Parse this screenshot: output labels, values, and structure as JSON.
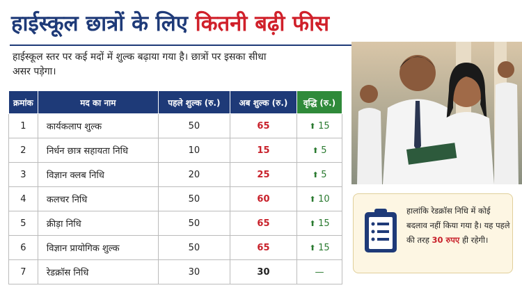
{
  "header": {
    "title_part1": "हाईस्कूल छात्रों के लिए",
    "title_part2": "कितनी बढ़ी फीस",
    "subtitle": "हाईस्कूल स्तर पर कई मदों में शुल्क बढ़ाया गया है। छात्रों पर इसका सीधा असर पड़ेगा।"
  },
  "table": {
    "columns": [
      "क्रमांक",
      "मद का नाम",
      "पहले शुल्क (रु.)",
      "अब शुल्क (रु.)",
      "वृद्धि (रु.)"
    ],
    "rows": [
      [
        1,
        "कार्यकलाप शुल्क",
        50,
        65,
        15
      ],
      [
        2,
        "निर्धन छात्र सहायता निधि",
        10,
        15,
        5
      ],
      [
        3,
        "विज्ञान क्लब निधि",
        20,
        25,
        5
      ],
      [
        4,
        "कलचर निधि",
        50,
        60,
        10
      ],
      [
        5,
        "क्रीड़ा निधि",
        50,
        65,
        15
      ],
      [
        6,
        "विज्ञान प्रायोगिक शुल्क",
        50,
        65,
        15
      ],
      [
        7,
        "रेडक्रॉस निधि",
        30,
        30,
        "—"
      ]
    ]
  },
  "note": {
    "text_before": "हालांकि रेडक्रॉस निधि में कोई बदलाव नहीं किया गया है। यह पहले की तरह",
    "highlight": "30 रुपए",
    "text_after": "ही रहेगी।"
  }
}
